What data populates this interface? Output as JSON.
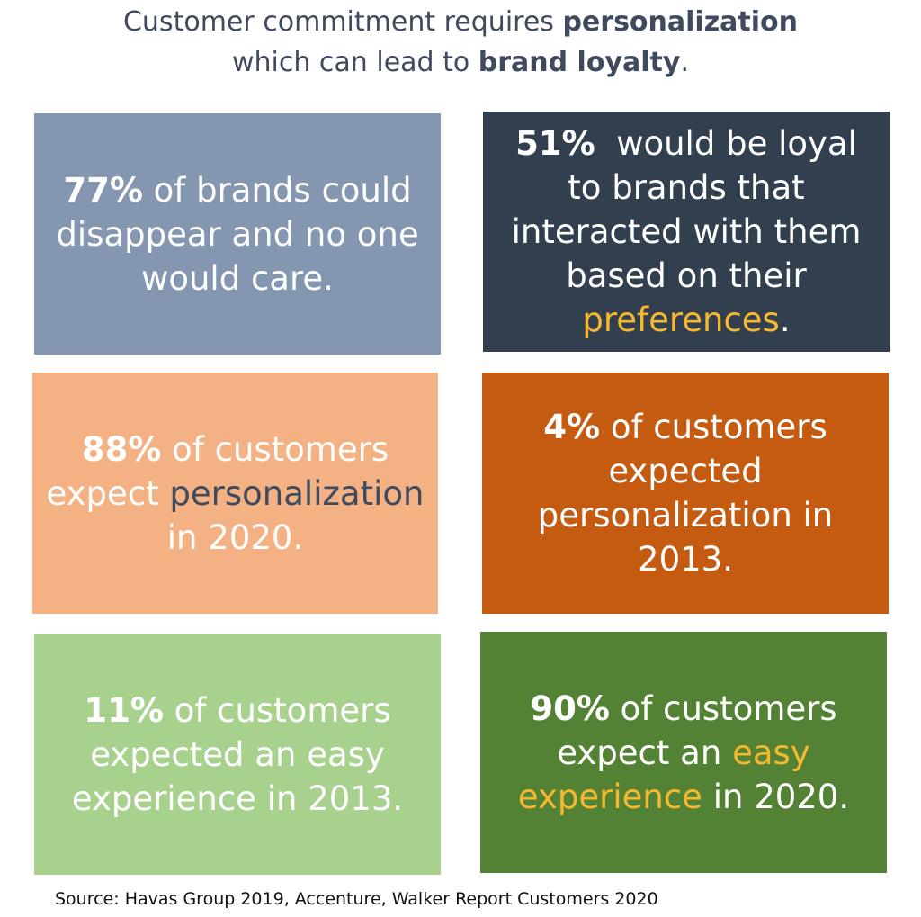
{
  "headline": {
    "line1_prefix": "Customer commitment requires ",
    "line1_bold": "personalization",
    "line2_prefix": "which can lead to ",
    "line2_bold": "brand loyalty",
    "line2_suffix": "."
  },
  "tiles": [
    {
      "stat": "77%",
      "text_before": " of brands could disappear and no one would care.",
      "highlight": "",
      "text_after": ""
    },
    {
      "stat": "51%",
      "text_before": "  would be loyal to brands that interacted with them based on their ",
      "highlight": "preferences",
      "text_after": "."
    },
    {
      "stat": "88%",
      "text_before": " of customers expect ",
      "highlight": "personalization",
      "text_after": " in 2020."
    },
    {
      "stat": "4%",
      "text_before": " of customers expected personalization in 2013.",
      "highlight": "",
      "text_after": ""
    },
    {
      "stat": "11%",
      "text_before": " of customers expected an easy experience in 2013.",
      "highlight": "",
      "text_after": ""
    },
    {
      "stat": "90%",
      "text_before": " of customers expect an ",
      "highlight": "easy experience",
      "text_after": " in 2020."
    }
  ],
  "colors": {
    "headline_text": "#3f4a5e",
    "tile_1": "#8496b0",
    "tile_2": "#323f4f",
    "tile_3": "#f4b183",
    "tile_4": "#c55a11",
    "tile_5": "#a9d18e",
    "tile_6": "#548235",
    "highlight_gold": "#f5b82e",
    "highlight_slate": "#3f4a5e"
  },
  "source": "Source: Havas Group 2019, Accenture, Walker Report Customers 2020"
}
